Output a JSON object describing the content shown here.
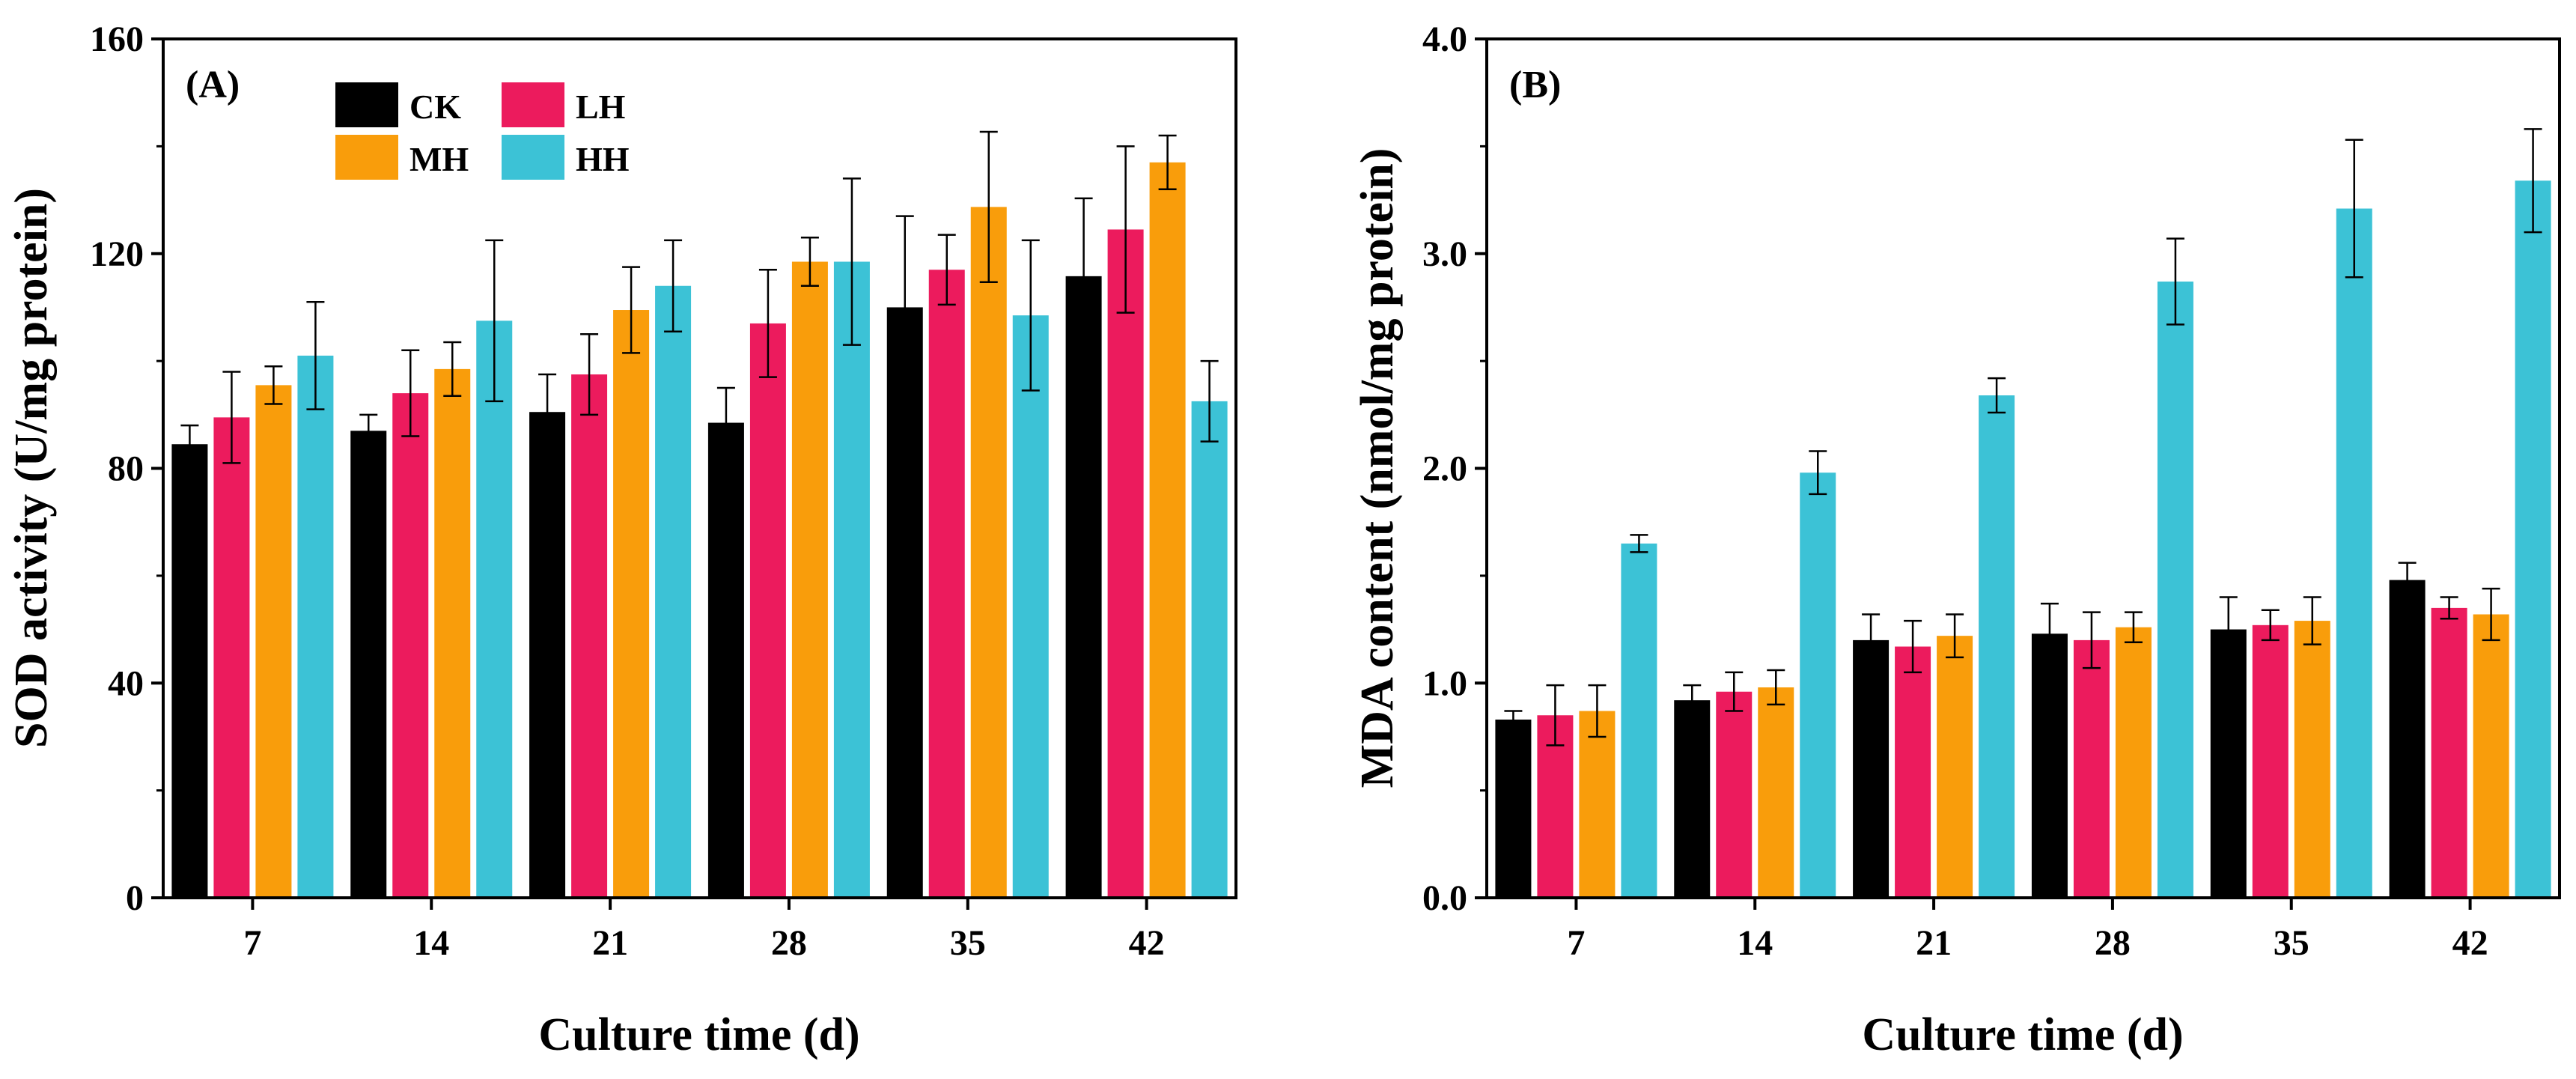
{
  "colors": {
    "CK": "#000000",
    "LH": "#ec1b5d",
    "MH": "#f99d0b",
    "HH": "#3cc2d6"
  },
  "chart_data": [
    {
      "type": "bar",
      "panel_label": "(A)",
      "categories": [
        "7",
        "14",
        "21",
        "28",
        "35",
        "42"
      ],
      "xlabel": "Culture time (d)",
      "ylabel": "SOD activity (U/mg protein)",
      "ylim": [
        0,
        160
      ],
      "yticks": [
        0,
        40,
        80,
        120,
        160
      ],
      "ytick_labels": [
        "0",
        "40",
        "80",
        "120",
        "160"
      ],
      "legend": {
        "placement": "top-left",
        "entries": [
          "CK",
          "LH",
          "MH",
          "HH"
        ]
      },
      "series": [
        {
          "name": "CK",
          "values": [
            84.5,
            87.0,
            90.5,
            88.5,
            110.0,
            115.8
          ],
          "errors": [
            3.5,
            3.0,
            7.0,
            6.5,
            17.0,
            14.5
          ]
        },
        {
          "name": "LH",
          "values": [
            89.5,
            94.0,
            97.5,
            107.0,
            117.0,
            124.5
          ],
          "errors": [
            8.5,
            8.0,
            7.5,
            10.0,
            6.5,
            15.5
          ]
        },
        {
          "name": "MH",
          "values": [
            95.5,
            98.5,
            109.5,
            118.5,
            128.7,
            137.0
          ],
          "errors": [
            3.5,
            5.0,
            8.0,
            4.5,
            14.0,
            5.0
          ]
        },
        {
          "name": "HH",
          "values": [
            101.0,
            107.5,
            114.0,
            118.5,
            108.5,
            92.5
          ],
          "errors": [
            10.0,
            15.0,
            8.5,
            15.5,
            14.0,
            7.5
          ]
        }
      ]
    },
    {
      "type": "bar",
      "panel_label": "(B)",
      "categories": [
        "7",
        "14",
        "21",
        "28",
        "35",
        "42"
      ],
      "xlabel": "Culture time (d)",
      "ylabel": "MDA content (nmol/mg protein)",
      "ylim": [
        0,
        4
      ],
      "yticks": [
        0,
        1,
        2,
        3,
        4
      ],
      "ytick_labels": [
        "0.0",
        "1.0",
        "2.0",
        "3.0",
        "4.0"
      ],
      "series": [
        {
          "name": "CK",
          "values": [
            0.83,
            0.92,
            1.2,
            1.23,
            1.25,
            1.48
          ],
          "errors": [
            0.04,
            0.07,
            0.12,
            0.14,
            0.15,
            0.08
          ]
        },
        {
          "name": "LH",
          "values": [
            0.85,
            0.96,
            1.17,
            1.2,
            1.27,
            1.35
          ],
          "errors": [
            0.14,
            0.09,
            0.12,
            0.13,
            0.07,
            0.05
          ]
        },
        {
          "name": "MH",
          "values": [
            0.87,
            0.98,
            1.22,
            1.26,
            1.29,
            1.32
          ],
          "errors": [
            0.12,
            0.08,
            0.1,
            0.07,
            0.11,
            0.12
          ]
        },
        {
          "name": "HH",
          "values": [
            1.65,
            1.98,
            2.34,
            2.87,
            3.21,
            3.34
          ],
          "errors": [
            0.04,
            0.1,
            0.08,
            0.2,
            0.32,
            0.24
          ]
        }
      ]
    }
  ]
}
